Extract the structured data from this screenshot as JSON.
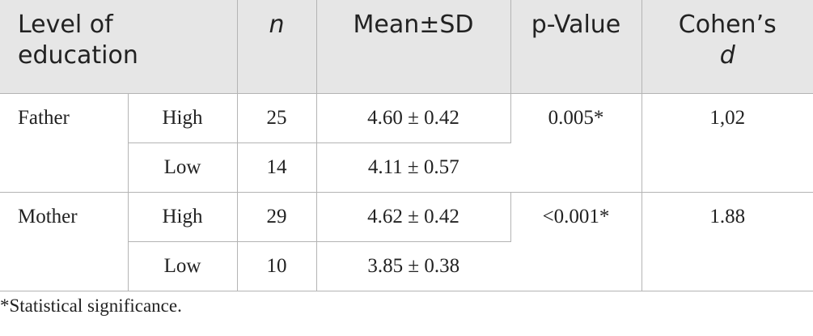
{
  "table": {
    "headers": {
      "education": "Level of education",
      "n": "n",
      "mean_sd": "Mean±SD",
      "p_value": "p-Value",
      "cohens_d_prefix": "Cohen’s",
      "cohens_d_symbol": "d"
    },
    "groups": [
      {
        "label": "Father",
        "p_value": "0.005*",
        "cohens_d": "1,02",
        "rows": [
          {
            "level": "High",
            "n": "25",
            "mean_sd": "4.60 ± 0.42"
          },
          {
            "level": "Low",
            "n": "14",
            "mean_sd": "4.11 ± 0.57"
          }
        ]
      },
      {
        "label": "Mother",
        "p_value": "<0.001*",
        "cohens_d": "1.88",
        "rows": [
          {
            "level": "High",
            "n": "29",
            "mean_sd": "4.62 ± 0.42"
          },
          {
            "level": "Low",
            "n": "10",
            "mean_sd": "3.85 ± 0.38"
          }
        ]
      }
    ]
  },
  "footnote": "*Statistical significance."
}
